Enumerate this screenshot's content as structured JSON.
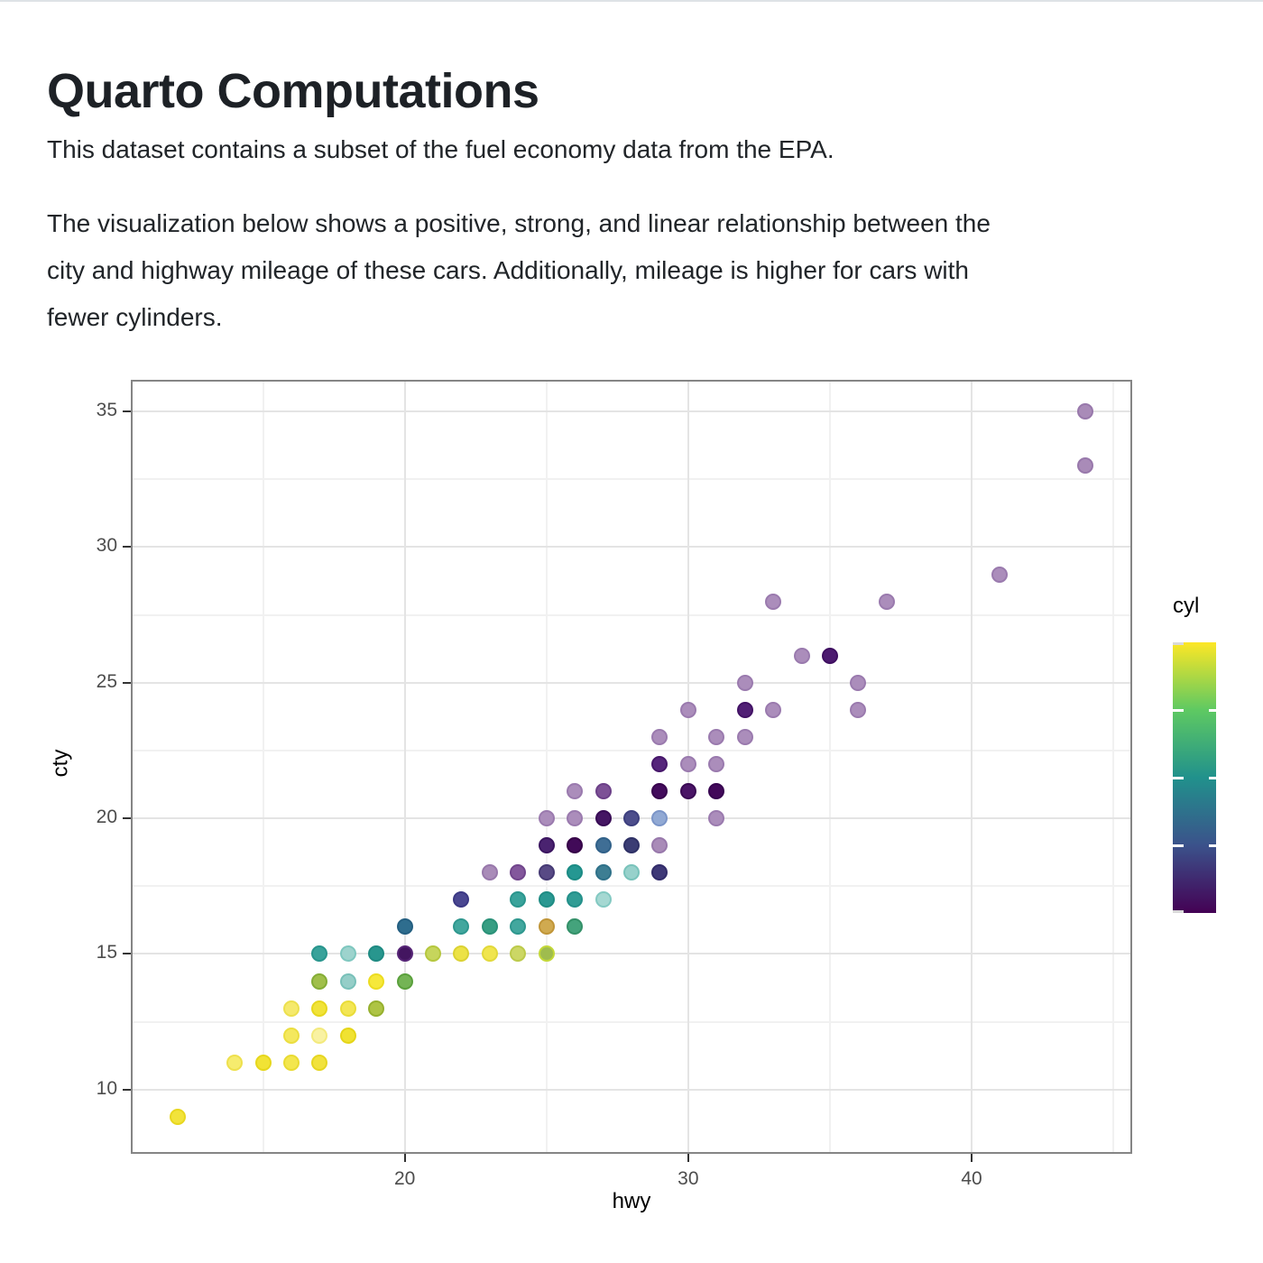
{
  "page": {
    "title": "Quarto Computations",
    "paragraph1": "This dataset contains a subset of the fuel economy data from the EPA.",
    "paragraph2_lines": [
      "The visualization below shows a positive, strong, and linear relationship between the",
      "city and highway mileage of these cars. Additionally, mileage is higher for cars with",
      "fewer cylinders."
    ]
  },
  "chart_data": {
    "type": "scatter",
    "xlabel": "hwy",
    "ylabel": "cty",
    "xlim": [
      10.4,
      45.6
    ],
    "ylim": [
      7.7,
      36.1
    ],
    "x_major_ticks": [
      20,
      30,
      40
    ],
    "x_minor_gridlines": [
      15,
      25,
      35,
      45
    ],
    "y_major_ticks": [
      10,
      15,
      20,
      25,
      30,
      35
    ],
    "y_minor_gridlines": [
      12.5,
      17.5,
      22.5,
      27.5,
      32.5
    ],
    "grid": "on",
    "legend": {
      "title": "cyl",
      "position": "right",
      "min": 4,
      "max": 8,
      "tick_values": [
        4,
        5,
        6,
        7,
        8
      ],
      "viridis_stops": [
        "#440154",
        "#3b528b",
        "#21918c",
        "#5ec962",
        "#fde725"
      ]
    },
    "points": [
      {
        "hwy": 12,
        "cty": 9,
        "cyl": 8,
        "color": "#f2e33b",
        "ring": "#e8d71f"
      },
      {
        "hwy": 14,
        "cty": 11,
        "cyl": 8,
        "color": "#f6ec6e",
        "ring": "#eee04d"
      },
      {
        "hwy": 15,
        "cty": 11,
        "cyl": 8,
        "color": "#f1e335",
        "ring": "#e6d71c"
      },
      {
        "hwy": 16,
        "cty": 11,
        "cyl": 8,
        "color": "#f3e64d",
        "ring": "#e9db32"
      },
      {
        "hwy": 17,
        "cty": 11,
        "cyl": 8,
        "color": "#f1e23d",
        "ring": "#e6d622"
      },
      {
        "hwy": 16,
        "cty": 12,
        "cyl": 8,
        "color": "#f4e85e",
        "ring": "#ebde40"
      },
      {
        "hwy": 17,
        "cty": 12,
        "cyl": 8,
        "color": "#f9f2a2",
        "ring": "#f3ea7d"
      },
      {
        "hwy": 18,
        "cty": 12,
        "cyl": 8,
        "color": "#f0e232",
        "ring": "#e5d518"
      },
      {
        "hwy": 16,
        "cty": 13,
        "cyl": 8,
        "color": "#f5e96c",
        "ring": "#ece04e"
      },
      {
        "hwy": 17,
        "cty": 13,
        "cyl": 8,
        "color": "#f1e338",
        "ring": "#e6d71e"
      },
      {
        "hwy": 18,
        "cty": 13,
        "cyl": 8,
        "color": "#f3e654",
        "ring": "#e9dc38"
      },
      {
        "hwy": 19,
        "cty": 13,
        "cyl": 8,
        "color": "#aec444",
        "ring": "#96b02e"
      },
      {
        "hwy": 17,
        "cty": 14,
        "cyl": 8,
        "color": "#a0bf4a",
        "ring": "#84ad36"
      },
      {
        "hwy": 18,
        "cty": 14,
        "cyl": 6,
        "color": "#95cec8",
        "ring": "#78c0b9"
      },
      {
        "hwy": 19,
        "cty": 14,
        "cyl": 8,
        "color": "#f6e83a",
        "ring": "#ecdc20"
      },
      {
        "hwy": 20,
        "cty": 14,
        "cyl": 8,
        "color": "#74b455",
        "ring": "#5aa03c"
      },
      {
        "hwy": 17,
        "cty": 15,
        "cyl": 6,
        "color": "#38a29a",
        "ring": "#28958d"
      },
      {
        "hwy": 18,
        "cty": 15,
        "cyl": 6,
        "color": "#9dd3cd",
        "ring": "#7ec7bf"
      },
      {
        "hwy": 19,
        "cty": 15,
        "cyl": 6,
        "color": "#28968e",
        "ring": "#1e8a82"
      },
      {
        "hwy": 20,
        "cty": 15,
        "cyl": 4,
        "color": "#431560",
        "ring": "#572677"
      },
      {
        "hwy": 21,
        "cty": 15,
        "cyl": 8,
        "color": "#c6d55c",
        "ring": "#b5c73e"
      },
      {
        "hwy": 22,
        "cty": 15,
        "cyl": 8,
        "color": "#ece246",
        "ring": "#dbd232"
      },
      {
        "hwy": 23,
        "cty": 15,
        "cyl": 8,
        "color": "#f0e54e",
        "ring": "#e2d93a"
      },
      {
        "hwy": 24,
        "cty": 15,
        "cyl": 8,
        "color": "#ccd765",
        "ring": "#bcca4a"
      },
      {
        "hwy": 25,
        "cty": 15,
        "cyl": 8,
        "color": "#9fbc4e",
        "ring": "#c3d839"
      },
      {
        "hwy": 20,
        "cty": 16,
        "cyl": 5,
        "color": "#2e6d8e",
        "ring": "#245f81"
      },
      {
        "hwy": 22,
        "cty": 16,
        "cyl": 6,
        "color": "#42a79e",
        "ring": "#2e978e"
      },
      {
        "hwy": 23,
        "cty": 16,
        "cyl": 6,
        "color": "#379e83",
        "ring": "#2a9178"
      },
      {
        "hwy": 24,
        "cty": 16,
        "cyl": 6,
        "color": "#42a79e",
        "ring": "#2e978e"
      },
      {
        "hwy": 25,
        "cty": 16,
        "cyl": 8,
        "color": "#d0aa50",
        "ring": "#c09538"
      },
      {
        "hwy": 26,
        "cty": 16,
        "cyl": 6,
        "color": "#44a37c",
        "ring": "#339068"
      },
      {
        "hwy": 22,
        "cty": 17,
        "cyl": 5,
        "color": "#4a4791",
        "ring": "#3b3884"
      },
      {
        "hwy": 24,
        "cty": 17,
        "cyl": 6,
        "color": "#3aa39b",
        "ring": "#2a958d"
      },
      {
        "hwy": 25,
        "cty": 17,
        "cyl": 6,
        "color": "#2a9892",
        "ring": "#1f8c84"
      },
      {
        "hwy": 26,
        "cty": 17,
        "cyl": 6,
        "color": "#319d95",
        "ring": "#24908a"
      },
      {
        "hwy": 27,
        "cty": 17,
        "cyl": 6,
        "color": "#a5d8d2",
        "ring": "#83c9c2"
      },
      {
        "hwy": 23,
        "cty": 18,
        "cyl": 4,
        "color": "#a98bb8",
        "ring": "#9878ab"
      },
      {
        "hwy": 24,
        "cty": 18,
        "cyl": 4,
        "color": "#83579c",
        "ring": "#71458c"
      },
      {
        "hwy": 25,
        "cty": 18,
        "cyl": 4,
        "color": "#584a85",
        "ring": "#463a74"
      },
      {
        "hwy": 26,
        "cty": 18,
        "cyl": 6,
        "color": "#259792",
        "ring": "#1b8b84"
      },
      {
        "hwy": 27,
        "cty": 18,
        "cyl": 6,
        "color": "#3d7e93",
        "ring": "#2f7189"
      },
      {
        "hwy": 28,
        "cty": 18,
        "cyl": 6,
        "color": "#97d1cb",
        "ring": "#79c3bb"
      },
      {
        "hwy": 29,
        "cty": 18,
        "cyl": 4,
        "color": "#3e3877",
        "ring": "#322c6a"
      },
      {
        "hwy": 25,
        "cty": 19,
        "cyl": 4,
        "color": "#4a2370",
        "ring": "#3b1560"
      },
      {
        "hwy": 26,
        "cty": 19,
        "cyl": 4,
        "color": "#410a58",
        "ring": "#360348"
      },
      {
        "hwy": 27,
        "cty": 19,
        "cyl": 5,
        "color": "#3f6e95",
        "ring": "#316189"
      },
      {
        "hwy": 28,
        "cty": 19,
        "cyl": 5,
        "color": "#3b3d74",
        "ring": "#2f3166"
      },
      {
        "hwy": 29,
        "cty": 19,
        "cyl": 4,
        "color": "#a98bb8",
        "ring": "#9878ab"
      },
      {
        "hwy": 25,
        "cty": 20,
        "cyl": 4,
        "color": "#ab8dbb",
        "ring": "#9a7aae"
      },
      {
        "hwy": 26,
        "cty": 20,
        "cyl": 4,
        "color": "#ab8dbb",
        "ring": "#9a7aae"
      },
      {
        "hwy": 27,
        "cty": 20,
        "cyl": 4,
        "color": "#451663",
        "ring": "#380b55"
      },
      {
        "hwy": 28,
        "cty": 20,
        "cyl": 5,
        "color": "#4c4d8b",
        "ring": "#3d3f7e"
      },
      {
        "hwy": 29,
        "cty": 20,
        "cyl": 5,
        "color": "#91a9d4",
        "ring": "#7b95c8"
      },
      {
        "hwy": 31,
        "cty": 20,
        "cyl": 4,
        "color": "#ab8dbb",
        "ring": "#9a7aae"
      },
      {
        "hwy": 26,
        "cty": 21,
        "cyl": 4,
        "color": "#ab8dbb",
        "ring": "#9a7aae"
      },
      {
        "hwy": 27,
        "cty": 21,
        "cyl": 4,
        "color": "#7d5196",
        "ring": "#6c4088"
      },
      {
        "hwy": 29,
        "cty": 21,
        "cyl": 4,
        "color": "#430c5c",
        "ring": "#38044e"
      },
      {
        "hwy": 30,
        "cty": 21,
        "cyl": 4,
        "color": "#4a1566",
        "ring": "#3a0a54"
      },
      {
        "hwy": 31,
        "cty": 21,
        "cyl": 4,
        "color": "#42095a",
        "ring": "#370350"
      },
      {
        "hwy": 29,
        "cty": 22,
        "cyl": 4,
        "color": "#56257b",
        "ring": "#47176b"
      },
      {
        "hwy": 30,
        "cty": 22,
        "cyl": 4,
        "color": "#ab8dbb",
        "ring": "#9a7aae"
      },
      {
        "hwy": 31,
        "cty": 22,
        "cyl": 4,
        "color": "#ab8dbb",
        "ring": "#9a7aae"
      },
      {
        "hwy": 29,
        "cty": 23,
        "cyl": 4,
        "color": "#ab8dbb",
        "ring": "#9a7aae"
      },
      {
        "hwy": 31,
        "cty": 23,
        "cyl": 4,
        "color": "#ab8dbb",
        "ring": "#9a7aae"
      },
      {
        "hwy": 32,
        "cty": 23,
        "cyl": 4,
        "color": "#ab8dbb",
        "ring": "#9a7aae"
      },
      {
        "hwy": 30,
        "cty": 24,
        "cyl": 4,
        "color": "#ab8dbb",
        "ring": "#9a7aae"
      },
      {
        "hwy": 32,
        "cty": 24,
        "cyl": 4,
        "color": "#512075",
        "ring": "#421265"
      },
      {
        "hwy": 33,
        "cty": 24,
        "cyl": 4,
        "color": "#ab8dbb",
        "ring": "#9a7aae"
      },
      {
        "hwy": 36,
        "cty": 24,
        "cyl": 4,
        "color": "#ab8dbb",
        "ring": "#9a7aae"
      },
      {
        "hwy": 32,
        "cty": 25,
        "cyl": 4,
        "color": "#ab8dbb",
        "ring": "#9a7aae"
      },
      {
        "hwy": 36,
        "cty": 25,
        "cyl": 4,
        "color": "#ab8dbb",
        "ring": "#9a7aae"
      },
      {
        "hwy": 34,
        "cty": 26,
        "cyl": 4,
        "color": "#ab8dbb",
        "ring": "#9a7aae"
      },
      {
        "hwy": 35,
        "cty": 26,
        "cyl": 4,
        "color": "#4c1a6f",
        "ring": "#3e0e60"
      },
      {
        "hwy": 33,
        "cty": 28,
        "cyl": 4,
        "color": "#ab8dbb",
        "ring": "#9a7aae"
      },
      {
        "hwy": 37,
        "cty": 28,
        "cyl": 4,
        "color": "#ab8dbb",
        "ring": "#9a7aae"
      },
      {
        "hwy": 41,
        "cty": 29,
        "cyl": 4,
        "color": "#ab8dbb",
        "ring": "#9a7aae"
      },
      {
        "hwy": 44,
        "cty": 33,
        "cyl": 4,
        "color": "#a98bb8",
        "ring": "#9878ab"
      },
      {
        "hwy": 44,
        "cty": 35,
        "cyl": 4,
        "color": "#a98bb8",
        "ring": "#9878ab"
      }
    ]
  },
  "theme": {
    "grid_major": "#e4e4e4",
    "grid_minor": "#f1f1f1",
    "panel_border": "#858585",
    "tick_mark": "#333333",
    "tick_label": "#4d4d4d"
  }
}
